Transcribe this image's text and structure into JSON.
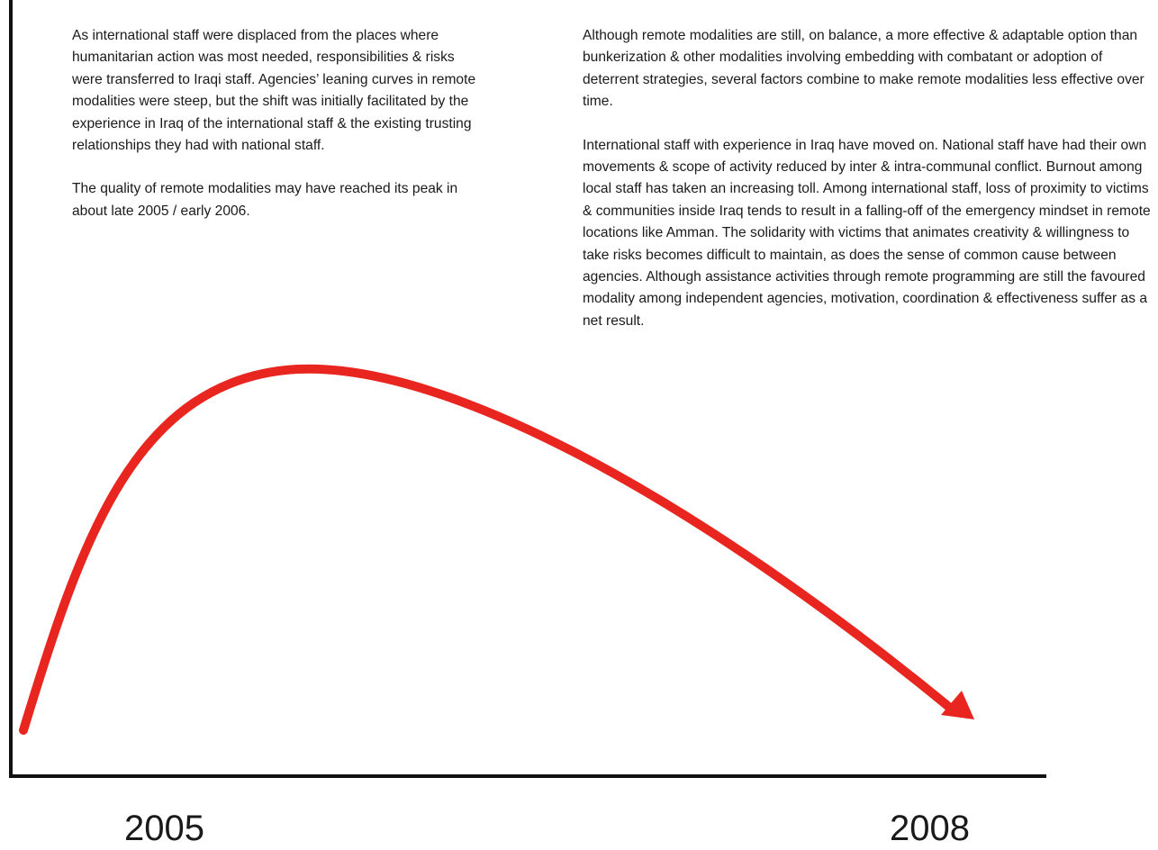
{
  "left_text": {
    "paragraphs": [
      "As international staff were displaced from the places where humanitarian action was most needed, responsibilities & risks were transferred to Iraqi staff. Agencies’ leaning curves in remote modalities were steep, but the shift was initially facilitated by the experience in Iraq of the international staff & the existing trusting relationships they had with national staff.",
      "The quality of remote modalities may have reached its peak in about late 2005 / early 2006."
    ]
  },
  "right_text": {
    "paragraphs": [
      "Although remote modalities are still, on balance, a more effective & adaptable option than bunkerization & other modalities involving embedding with combatant or adoption of deterrent strategies, several factors combine to make remote modalities less effective over time.",
      "International staff with experience in Iraq have moved on. National staff have had their own movements & scope of activity reduced by inter & intra-communal conflict. Burnout among local staff has taken an increasing toll. Among international staff, loss of proximity to victims & communities inside Iraq tends to result in a falling-off of the emergency mindset in remote locations like Amman. The solidarity with victims that animates creativity & willingness to take risks becomes difficult to maintain, as does the sense of common cause between agencies. Although assistance activities through remote programming are still the favoured modality among independent agencies, motivation, coordination & effectiveness suffer as a net result."
    ]
  },
  "x_axis": {
    "start_label": "2005",
    "end_label": "2008"
  },
  "colors": {
    "curve": "#e8261f",
    "axes": "#111111",
    "text": "#1a1a1a"
  }
}
